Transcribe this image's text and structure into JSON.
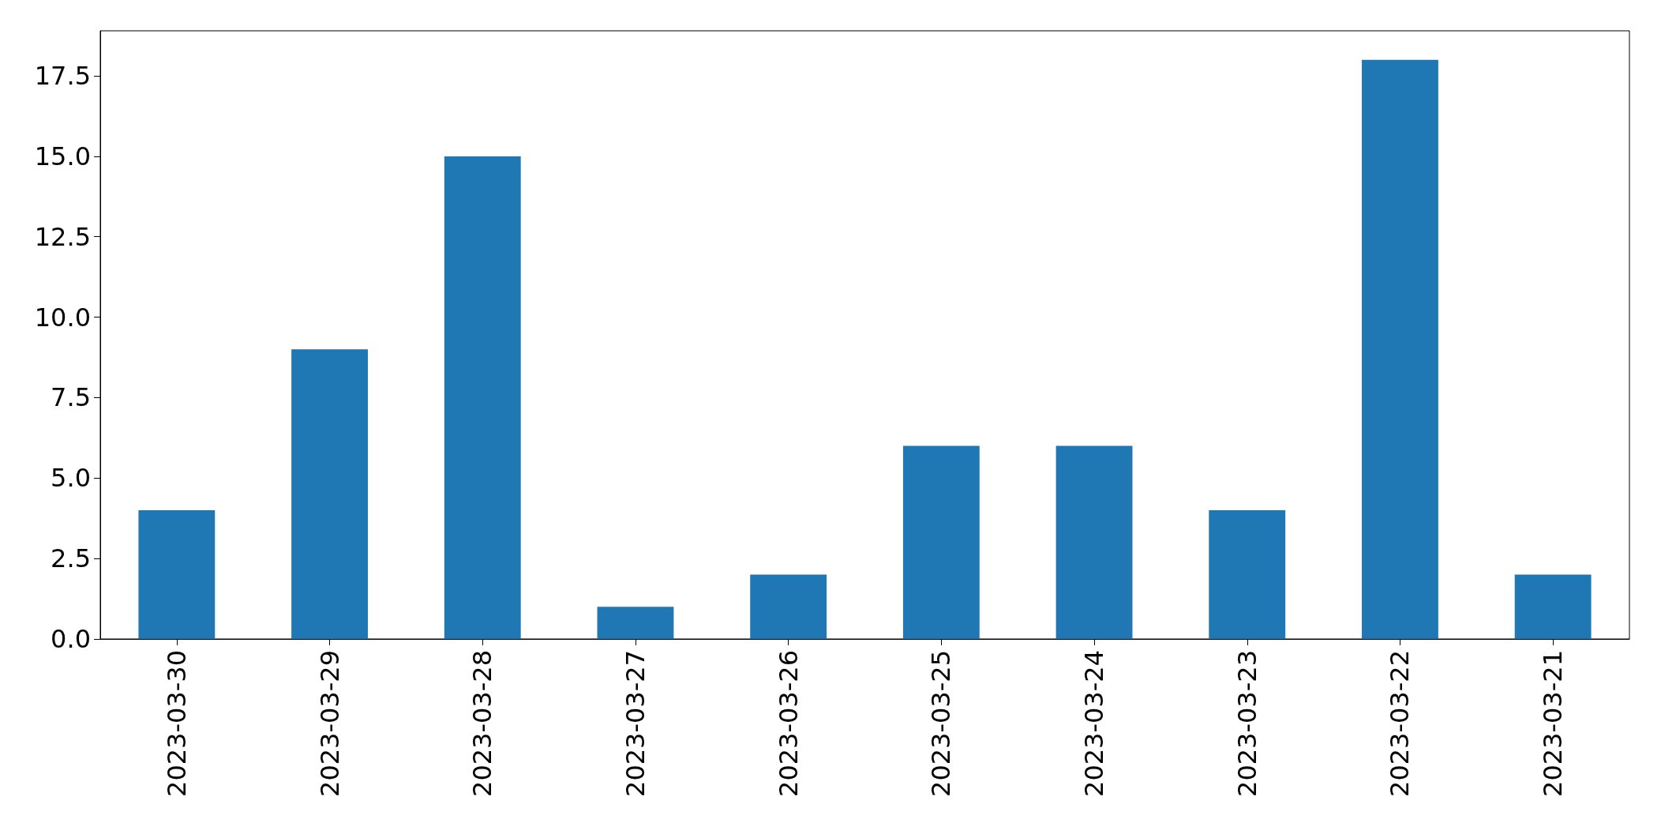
{
  "chart_data": {
    "type": "bar",
    "categories": [
      "2023-03-30",
      "2023-03-29",
      "2023-03-28",
      "2023-03-27",
      "2023-03-26",
      "2023-03-25",
      "2023-03-24",
      "2023-03-23",
      "2023-03-22",
      "2023-03-21"
    ],
    "values": [
      4,
      9,
      15,
      1,
      2,
      6,
      6,
      4,
      18,
      2
    ],
    "color": "#1f77b4",
    "ylim": [
      0,
      18.9
    ],
    "yticks": [
      {
        "value": 0,
        "label": "0.0"
      },
      {
        "value": 2.5,
        "label": "2.5"
      },
      {
        "value": 5,
        "label": "5.0"
      },
      {
        "value": 7.5,
        "label": "7.5"
      },
      {
        "value": 10,
        "label": "10.0"
      },
      {
        "value": 12.5,
        "label": "12.5"
      },
      {
        "value": 15,
        "label": "15.0"
      },
      {
        "value": 17.5,
        "label": "17.5"
      }
    ],
    "grid": false
  }
}
